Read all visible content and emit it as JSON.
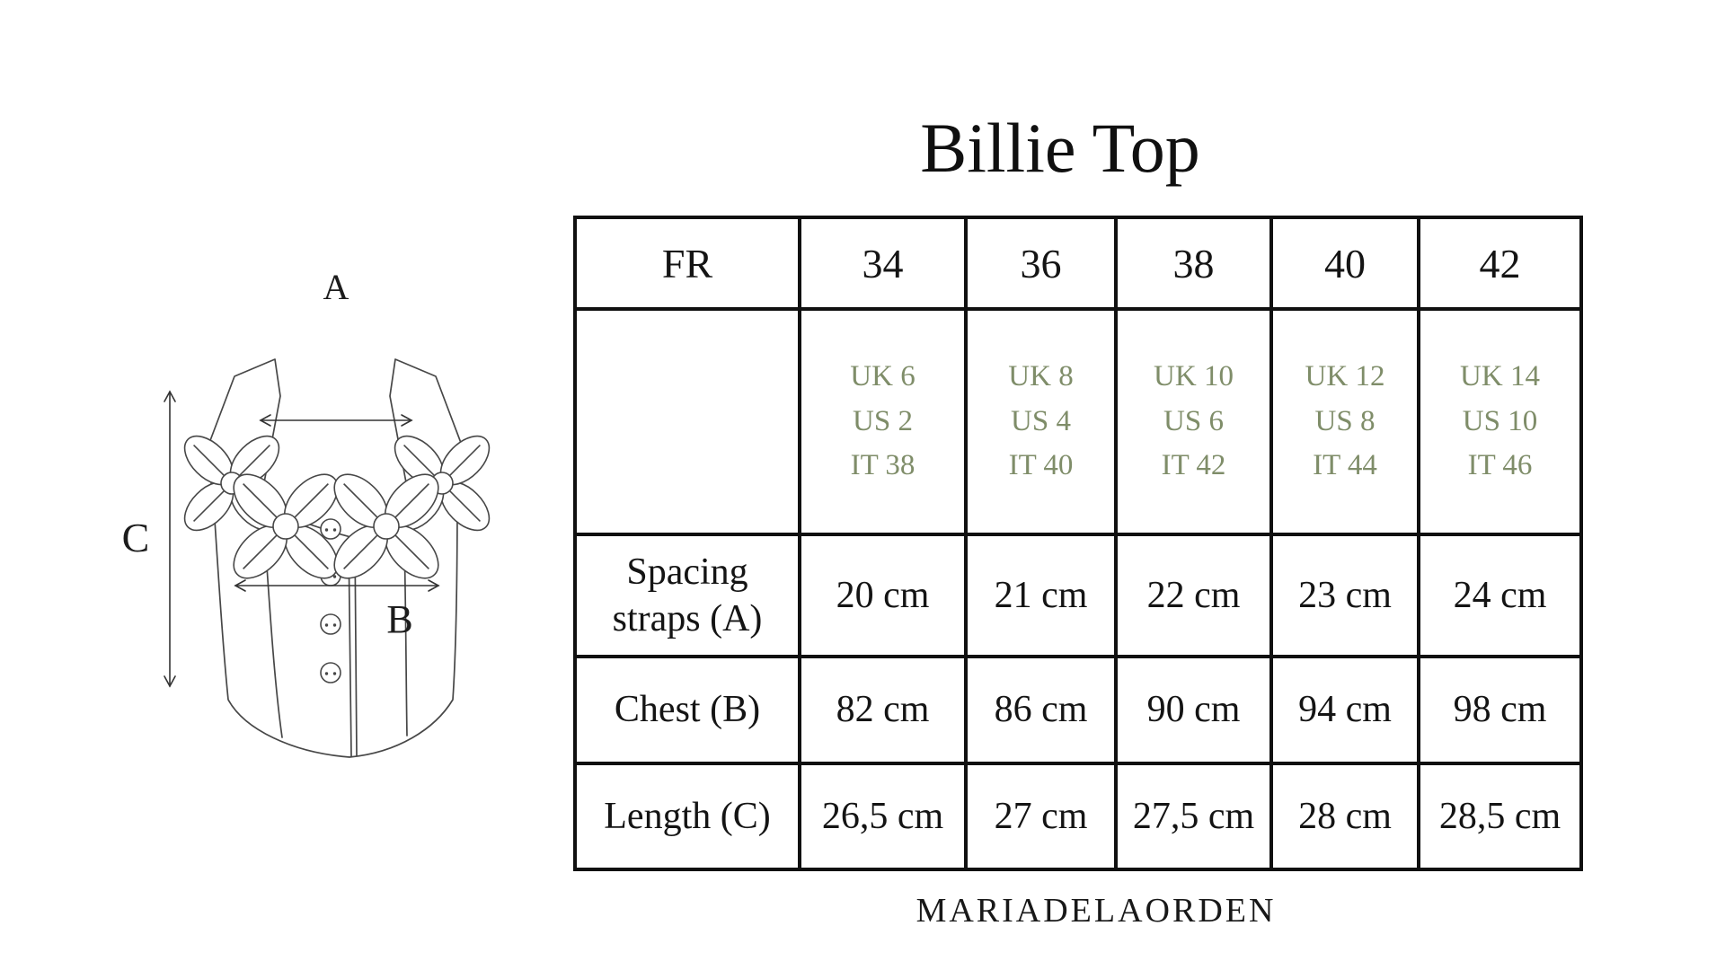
{
  "title": "Billie Top",
  "brand_footer": "MARIADELAORDEN",
  "colors": {
    "size_text_green": "#7f8d69",
    "table_border": "#101010",
    "text": "#141414",
    "line_art": "#474747"
  },
  "measurement_labels": {
    "a": "A",
    "b": "B",
    "c": "C"
  },
  "size_table": {
    "region_header": {
      "region_label": "FR",
      "sizes": [
        "34",
        "36",
        "38",
        "40",
        "42"
      ]
    },
    "international_sizes": [
      {
        "uk": "UK 6",
        "us": "US 2",
        "it": "IT 38"
      },
      {
        "uk": "UK 8",
        "us": "US 4",
        "it": "IT 40"
      },
      {
        "uk": "UK 10",
        "us": "US 6",
        "it": "IT 42"
      },
      {
        "uk": "UK 12",
        "us": "US 8",
        "it": "IT 44"
      },
      {
        "uk": "UK 14",
        "us": "US 10",
        "it": "IT 46"
      }
    ],
    "measurement_rows": [
      {
        "label_line1": "Spacing",
        "label_line2": "straps (A)",
        "values": [
          "20 cm",
          "21 cm",
          "22 cm",
          "23 cm",
          "24 cm"
        ]
      },
      {
        "label_line1": "Chest (B)",
        "label_line2": "",
        "values": [
          "82 cm",
          "86 cm",
          "90 cm",
          "94 cm",
          "98 cm"
        ]
      },
      {
        "label_line1": "Length (C)",
        "label_line2": "",
        "values": [
          "26,5 cm",
          "27 cm",
          "27,5 cm",
          "28 cm",
          "28,5 cm"
        ]
      }
    ]
  }
}
